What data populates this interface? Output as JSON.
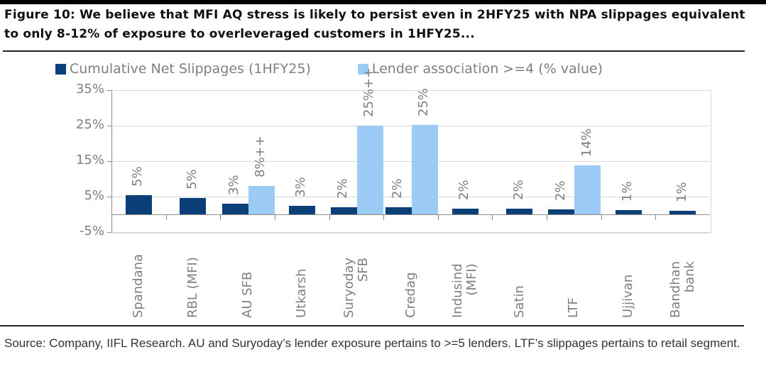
{
  "figure": {
    "title": "Figure 10: We believe that MFI AQ stress is likely to persist even in 2HFY25 with NPA slippages equivalent to only 8-12% of exposure to overleveraged customers in 1HFY25...",
    "source": "Source: Company, IIFL Research. AU and Suryoday’s lender exposure pertains to >=5 lenders. LTF’s slippages pertains to retail segment."
  },
  "legend": {
    "items": [
      {
        "label": "Cumulative Net Slippages (1HFY25)",
        "color": "#0b3f78"
      },
      {
        "label": "Lender association >=4 (% value)",
        "color": "#9ccbf5"
      }
    ]
  },
  "colors": {
    "series1": "#0b3f78",
    "series2": "#9ccbf5",
    "axis_text": "#7f7f7f",
    "gridline": "#d9d9d9"
  },
  "yaxis": {
    "ticks": [
      "35%",
      "25%",
      "15%",
      "5%",
      "-5%"
    ]
  },
  "chart_data": {
    "type": "bar",
    "title": "Figure 10: We believe that MFI AQ stress is likely to persist even in 2HFY25 with NPA slippages equivalent to only 8-12% of exposure to overleveraged customers in 1HFY25...",
    "xlabel": "",
    "ylabel": "",
    "ylim": [
      -5,
      35
    ],
    "yticks": [
      -5,
      5,
      15,
      25,
      35
    ],
    "grid": true,
    "legend_position": "top",
    "categories": [
      "Spandana",
      "RBL (MFI)",
      "AU SFB",
      "Utkarsh",
      "Suryoday SFB",
      "Credag",
      "Indusind (MFI)",
      "Satin",
      "LTF",
      "Ujjivan",
      "Bandhan bank"
    ],
    "series": [
      {
        "name": "Cumulative Net Slippages (1HFY25)",
        "values": [
          5.4,
          4.7,
          3.0,
          2.5,
          2.0,
          2.0,
          1.7,
          1.7,
          1.5,
          1.2,
          1.0
        ],
        "labels": [
          "5%",
          "5%",
          "3%",
          "3%",
          "2%",
          "2%",
          "2%",
          "2%",
          "2%",
          "1%",
          "1%"
        ]
      },
      {
        "name": "Lender association >=4 (% value)",
        "values": [
          null,
          null,
          8.0,
          null,
          25.0,
          25.3,
          null,
          null,
          13.8,
          null,
          null
        ],
        "labels": [
          null,
          null,
          "8%++",
          null,
          "25%++",
          "25%",
          null,
          null,
          "14%",
          null,
          null
        ]
      }
    ]
  }
}
